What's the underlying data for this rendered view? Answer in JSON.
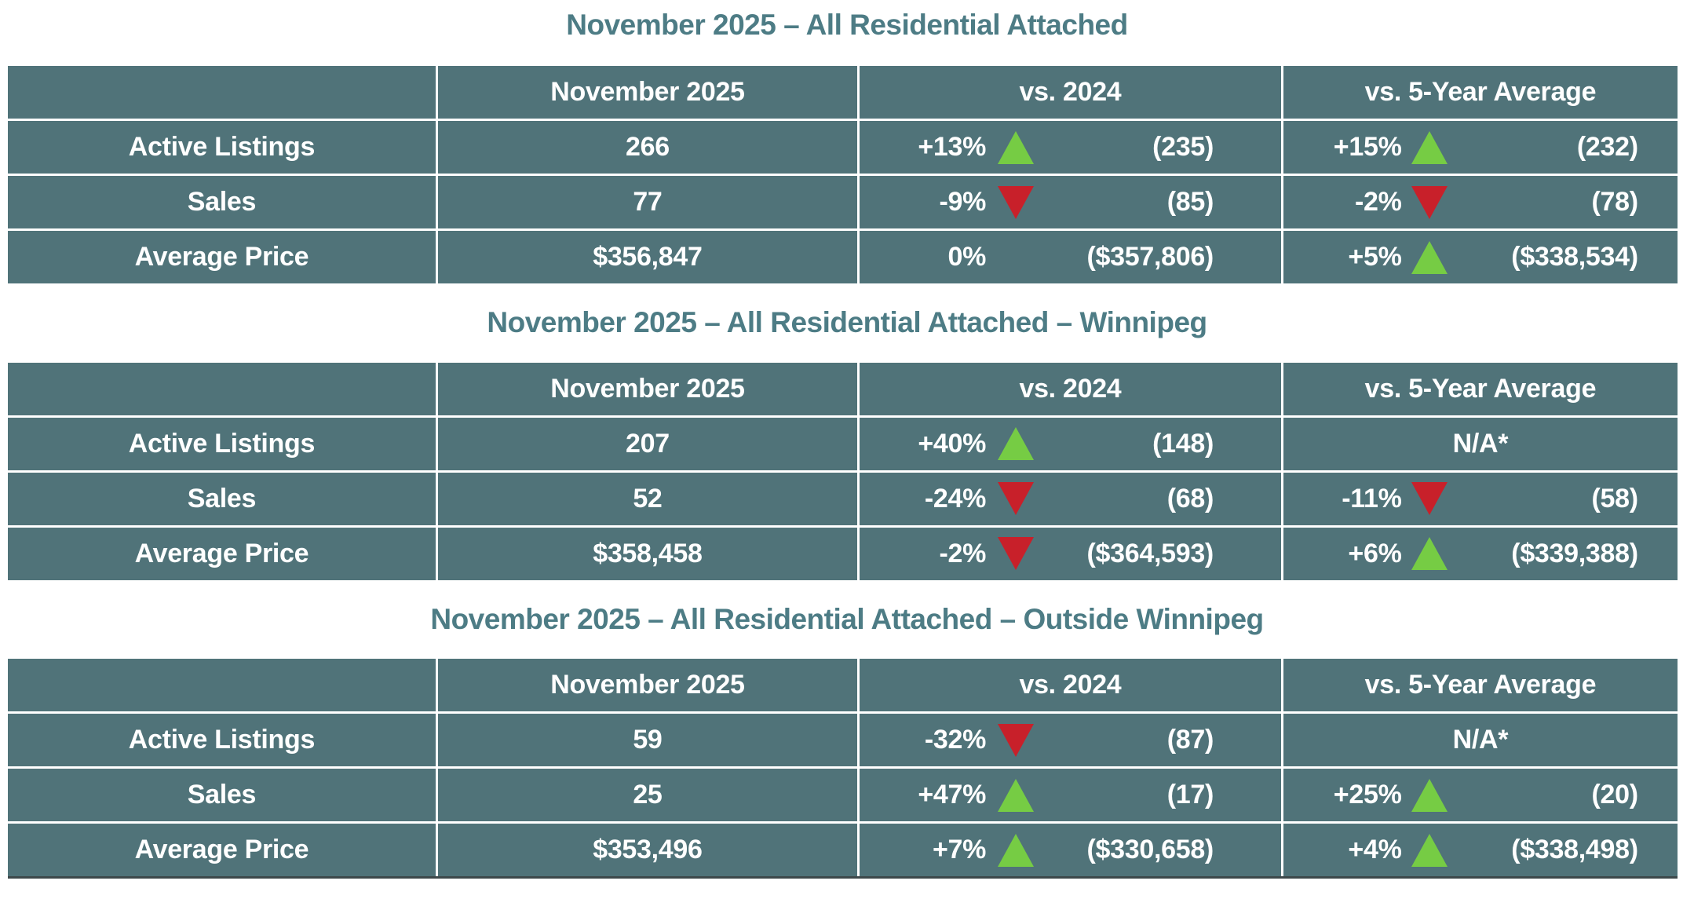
{
  "colors": {
    "table_background": "#507379",
    "grid_line": "#ffffff",
    "title_text": "#4d7c85",
    "cell_text": "#ffffff",
    "up_arrow": "#76cc44",
    "down_arrow": "#c8202a"
  },
  "tables": [
    {
      "title": "November 2025 – All Residential Attached",
      "headers": [
        "",
        "November 2025",
        "vs. 2024",
        "vs. 5-Year Average"
      ],
      "rows": [
        {
          "label": "Active Listings",
          "current": "266",
          "vs2024": {
            "pct": "+13%",
            "dir": "up",
            "ref": "(235)"
          },
          "vs5yr": {
            "pct": "+15%",
            "dir": "up",
            "ref": "(232)"
          }
        },
        {
          "label": "Sales",
          "current": "77",
          "vs2024": {
            "pct": "-9%",
            "dir": "down",
            "ref": "(85)"
          },
          "vs5yr": {
            "pct": "-2%",
            "dir": "down",
            "ref": "(78)"
          }
        },
        {
          "label": "Average Price",
          "current": "$356,847",
          "vs2024": {
            "pct": "0%",
            "dir": "none",
            "ref": "($357,806)"
          },
          "vs5yr": {
            "pct": "+5%",
            "dir": "up",
            "ref": "($338,534)"
          }
        }
      ]
    },
    {
      "title": "November 2025 – All Residential Attached – Winnipeg",
      "headers": [
        "",
        "November 2025",
        "vs. 2024",
        "vs. 5-Year Average"
      ],
      "rows": [
        {
          "label": "Active Listings",
          "current": "207",
          "vs2024": {
            "pct": "+40%",
            "dir": "up",
            "ref": "(148)"
          },
          "vs5yr": {
            "na": "N/A*"
          }
        },
        {
          "label": "Sales",
          "current": "52",
          "vs2024": {
            "pct": "-24%",
            "dir": "down",
            "ref": "(68)"
          },
          "vs5yr": {
            "pct": "-11%",
            "dir": "down",
            "ref": "(58)"
          }
        },
        {
          "label": "Average Price",
          "current": "$358,458",
          "vs2024": {
            "pct": "-2%",
            "dir": "down",
            "ref": "($364,593)"
          },
          "vs5yr": {
            "pct": "+6%",
            "dir": "up",
            "ref": "($339,388)"
          }
        }
      ]
    },
    {
      "title": "November 2025 – All Residential Attached – Outside Winnipeg",
      "headers": [
        "",
        "November 2025",
        "vs. 2024",
        "vs. 5-Year Average"
      ],
      "rows": [
        {
          "label": "Active Listings",
          "current": "59",
          "vs2024": {
            "pct": "-32%",
            "dir": "down",
            "ref": "(87)"
          },
          "vs5yr": {
            "na": "N/A*"
          }
        },
        {
          "label": "Sales",
          "current": "25",
          "vs2024": {
            "pct": "+47%",
            "dir": "up",
            "ref": "(17)"
          },
          "vs5yr": {
            "pct": "+25%",
            "dir": "up",
            "ref": "(20)"
          }
        },
        {
          "label": "Average Price",
          "current": "$353,496",
          "vs2024": {
            "pct": "+7%",
            "dir": "up",
            "ref": "($330,658)"
          },
          "vs5yr": {
            "pct": "+4%",
            "dir": "up",
            "ref": "($338,498)"
          }
        }
      ]
    }
  ]
}
